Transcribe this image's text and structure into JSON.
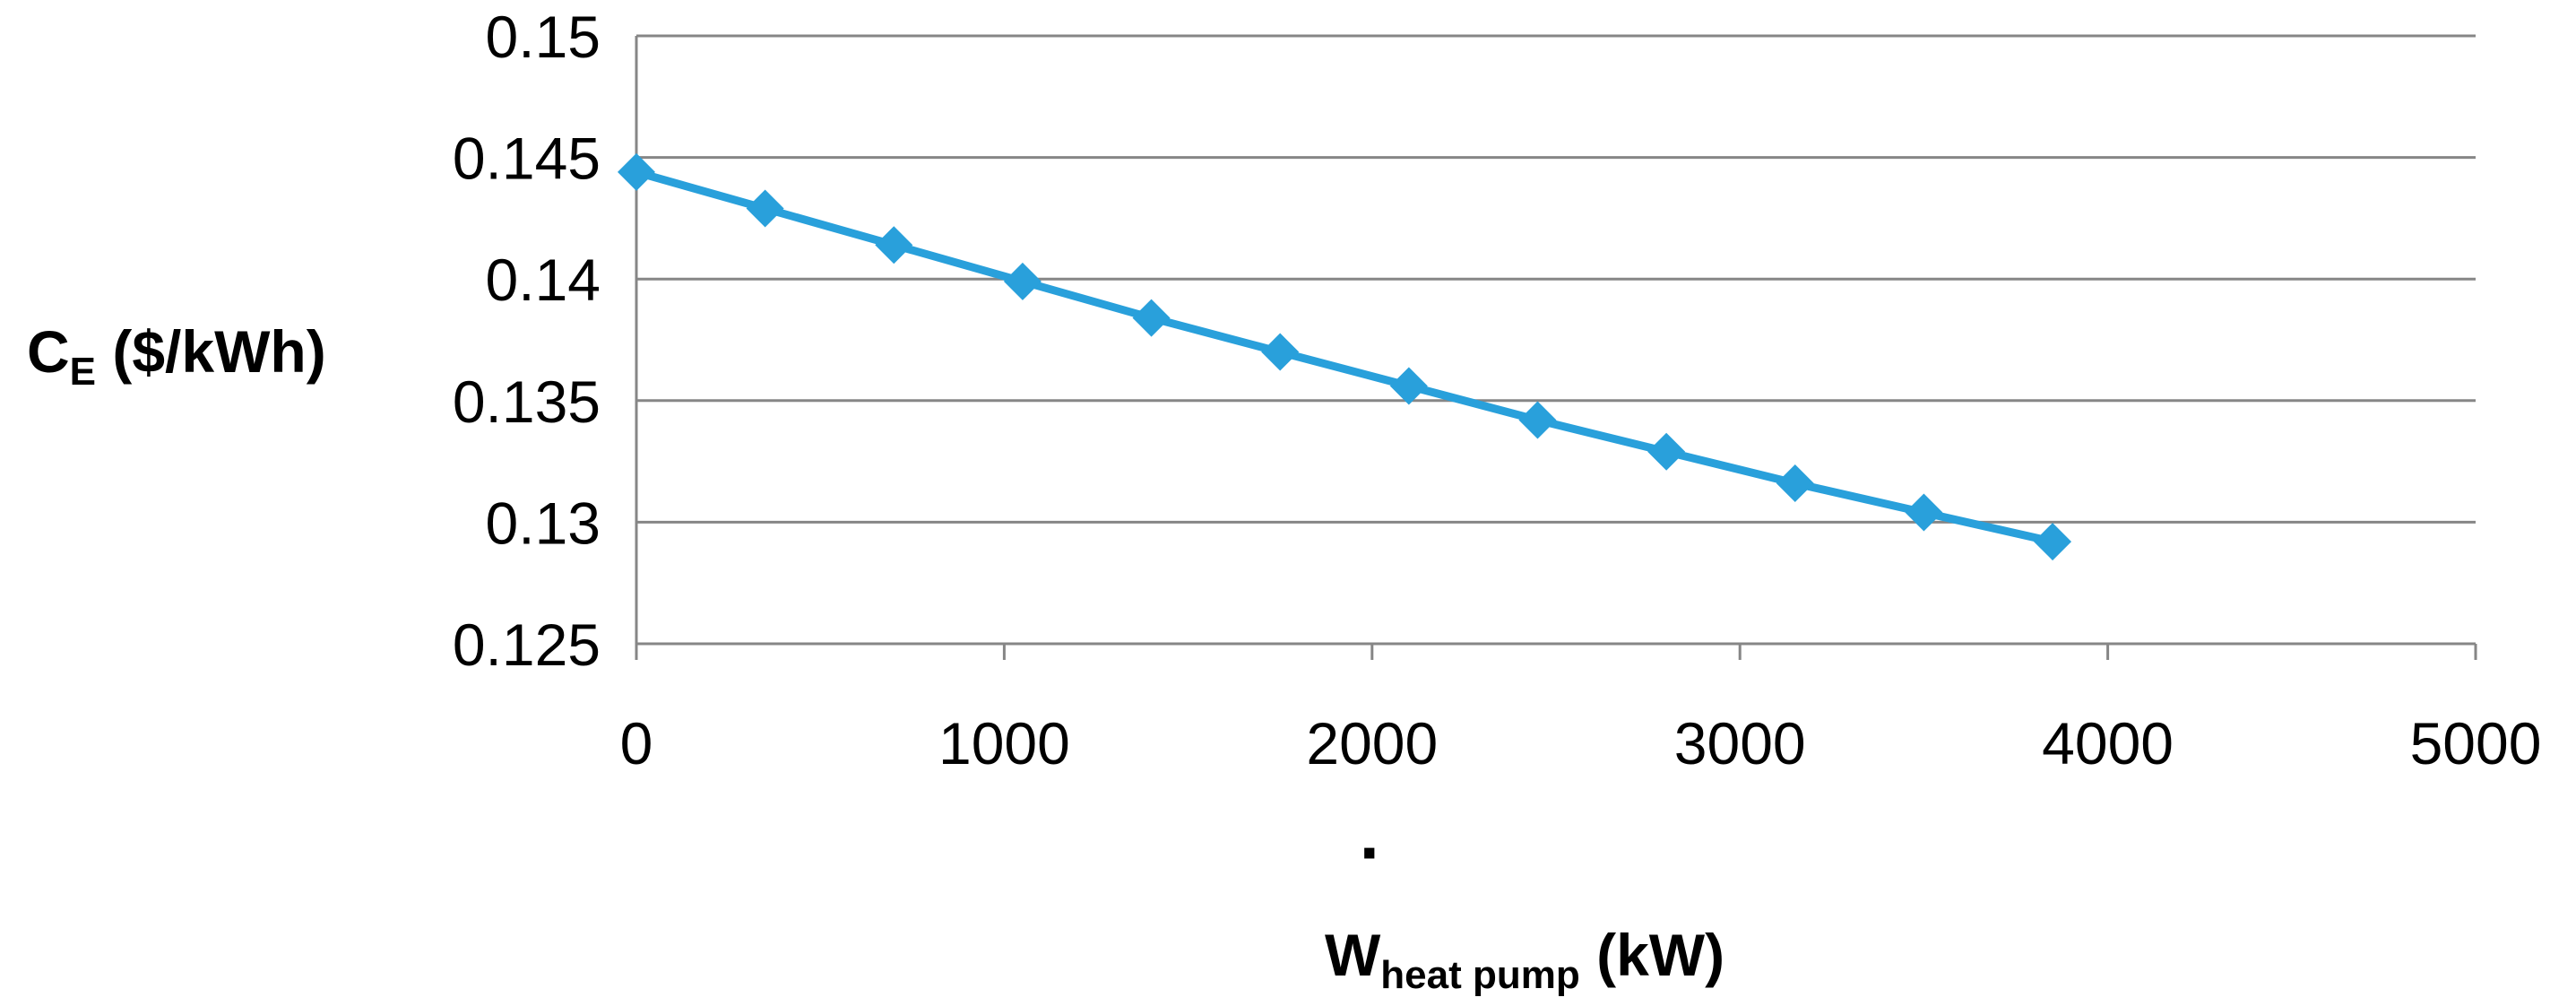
{
  "chart_data": {
    "type": "line",
    "title": "",
    "ylabel": {
      "main": "C",
      "subscript": "E",
      "suffix": " ($/kWh)"
    },
    "xlabel": {
      "dot": "·",
      "main": "W",
      "subscript": "heat pump",
      "suffix": " (kW)"
    },
    "xlim": [
      0,
      5000
    ],
    "ylim": [
      0.125,
      0.15
    ],
    "x_ticks": [
      0,
      1000,
      2000,
      3000,
      4000,
      5000
    ],
    "x_tick_labels": [
      "0",
      "1000",
      "2000",
      "3000",
      "4000",
      "5000"
    ],
    "y_ticks": [
      0.125,
      0.13,
      0.135,
      0.14,
      0.145,
      0.15
    ],
    "y_tick_labels": [
      "0.125",
      "0.13",
      "0.135",
      "0.14",
      "0.145",
      "0.15"
    ],
    "grid": "horizontal",
    "colors": {
      "series": "#29a0db",
      "grid": "#868686",
      "axis_text": "#000000"
    },
    "series": [
      {
        "name": "C_E",
        "marker": "diamond",
        "x": [
          0,
          350,
          700,
          1050,
          1400,
          1750,
          2100,
          2450,
          2800,
          3150,
          3500,
          3850
        ],
        "y": [
          0.1444,
          0.1429,
          0.1414,
          0.1399,
          0.1384,
          0.137,
          0.1356,
          0.1342,
          0.1329,
          0.1316,
          0.1304,
          0.1292
        ]
      }
    ]
  }
}
